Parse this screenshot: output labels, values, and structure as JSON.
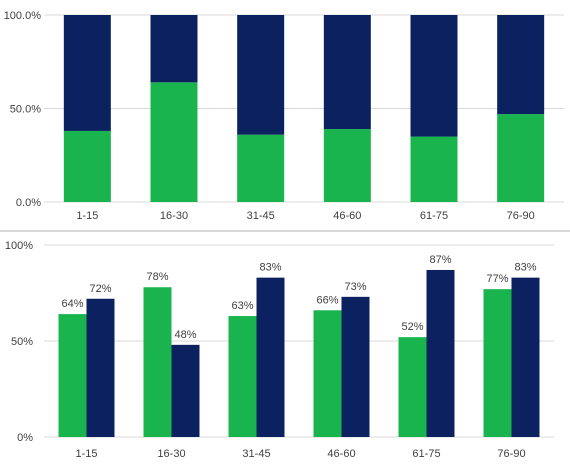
{
  "colors": {
    "green": "#19b44e",
    "navy": "#0c2160",
    "grid": "#d9d9d9",
    "text": "#404040"
  },
  "chart_data": [
    {
      "type": "bar",
      "stacked": true,
      "percent_stacked": true,
      "categories": [
        "1-15",
        "16-30",
        "31-45",
        "46-60",
        "61-75",
        "76-90"
      ],
      "series": [
        {
          "color": "green",
          "values": [
            38,
            64,
            36,
            39,
            35,
            47
          ]
        },
        {
          "color": "navy",
          "values": [
            62,
            36,
            64,
            61,
            65,
            53
          ]
        }
      ],
      "yticks": [
        "0.0%",
        "50.0%",
        "100.0%"
      ],
      "ylim": [
        0,
        100
      ],
      "grid": true
    },
    {
      "type": "bar",
      "stacked": false,
      "categories": [
        "1-15",
        "16-30",
        "31-45",
        "46-60",
        "61-75",
        "76-90"
      ],
      "series": [
        {
          "color": "green",
          "values": [
            64,
            78,
            63,
            66,
            52,
            77
          ],
          "labels": [
            "64%",
            "78%",
            "63%",
            "66%",
            "52%",
            "77%"
          ]
        },
        {
          "color": "navy",
          "values": [
            72,
            48,
            83,
            73,
            87,
            83
          ],
          "labels": [
            "72%",
            "48%",
            "83%",
            "73%",
            "87%",
            "83%"
          ]
        }
      ],
      "yticks": [
        "0%",
        "50%",
        "100%"
      ],
      "ylim": [
        0,
        100
      ],
      "grid": true
    }
  ]
}
